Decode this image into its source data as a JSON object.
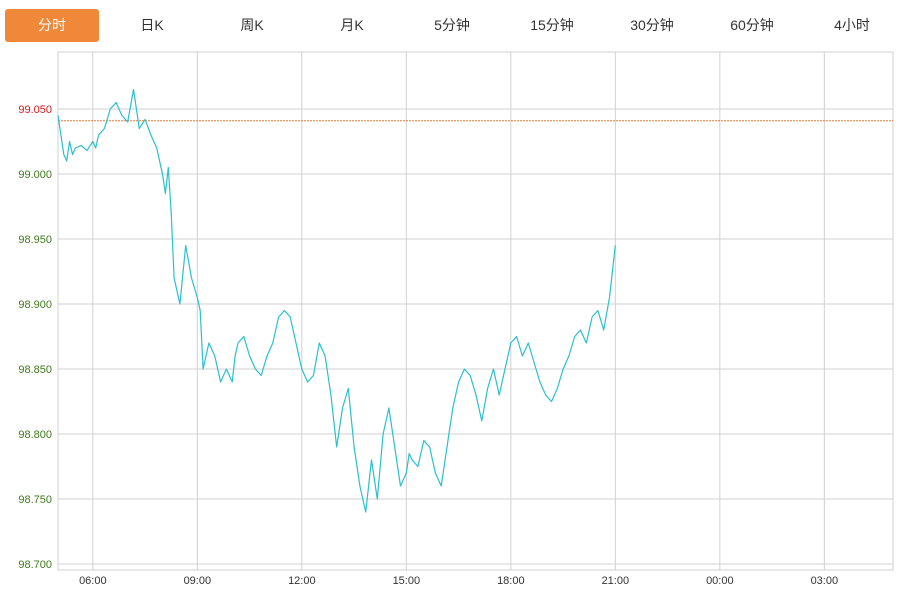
{
  "tabs": [
    {
      "label": "分时",
      "active": true
    },
    {
      "label": "日K",
      "active": false
    },
    {
      "label": "周K",
      "active": false
    },
    {
      "label": "月K",
      "active": false
    },
    {
      "label": "5分钟",
      "active": false
    },
    {
      "label": "15分钟",
      "active": false
    },
    {
      "label": "30分钟",
      "active": false
    },
    {
      "label": "60分钟",
      "active": false
    },
    {
      "label": "4小时",
      "active": false
    }
  ],
  "colors": {
    "accent": "#f0883a",
    "line": "#2bbfcf",
    "reference": "#e07b39",
    "grid": "#d0d0d0",
    "ytick": "#3d7a1a",
    "ytick_ref": "#d11a1a"
  },
  "chart_data": {
    "type": "line",
    "title": "",
    "xlabel": "",
    "ylabel": "",
    "x_ticks": [
      "06:00",
      "09:00",
      "12:00",
      "15:00",
      "18:00",
      "21:00",
      "00:00",
      "03:00"
    ],
    "y_ticks": [
      "98.700",
      "98.750",
      "98.800",
      "98.850",
      "98.900",
      "98.950",
      "99.000",
      "99.050"
    ],
    "y_highlight_tick": "99.050",
    "ylim": [
      98.7,
      99.05
    ],
    "xlim": [
      "05:00",
      "04:00"
    ],
    "reference_line": 99.041,
    "grid": true,
    "series": [
      {
        "x": [
          "05:00",
          "05:10",
          "05:15",
          "05:20",
          "05:25",
          "05:30",
          "05:40",
          "05:50",
          "06:00",
          "06:05",
          "06:10",
          "06:20",
          "06:30",
          "06:40",
          "06:50",
          "07:00",
          "07:10",
          "07:20",
          "07:30",
          "07:40",
          "07:50",
          "08:00",
          "08:05",
          "08:10",
          "08:15",
          "08:20",
          "08:30",
          "08:40",
          "08:50",
          "09:00",
          "09:05",
          "09:10",
          "09:20",
          "09:30",
          "09:40",
          "09:50",
          "10:00",
          "10:05",
          "10:10",
          "10:20",
          "10:30",
          "10:40",
          "10:50",
          "11:00",
          "11:10",
          "11:20",
          "11:30",
          "11:40",
          "11:50",
          "12:00",
          "12:10",
          "12:20",
          "12:30",
          "12:40",
          "12:50",
          "13:00",
          "13:10",
          "13:20",
          "13:30",
          "13:40",
          "13:50",
          "14:00",
          "14:10",
          "14:20",
          "14:30",
          "14:40",
          "14:50",
          "15:00",
          "15:05",
          "15:10",
          "15:20",
          "15:30",
          "15:40",
          "15:50",
          "16:00",
          "16:10",
          "16:20",
          "16:30",
          "16:40",
          "16:50",
          "17:00",
          "17:10",
          "17:20",
          "17:30",
          "17:40",
          "17:50",
          "18:00",
          "18:10",
          "18:20",
          "18:30",
          "18:40",
          "18:50",
          "19:00",
          "19:10",
          "19:20",
          "19:30",
          "19:40",
          "19:50",
          "20:00",
          "20:10",
          "20:20",
          "20:30",
          "20:40",
          "20:50",
          "21:00"
        ],
        "y": [
          99.045,
          99.015,
          99.01,
          99.025,
          99.015,
          99.02,
          99.022,
          99.018,
          99.025,
          99.02,
          99.03,
          99.035,
          99.05,
          99.055,
          99.045,
          99.04,
          99.065,
          99.035,
          99.042,
          99.03,
          99.02,
          99.0,
          98.985,
          99.005,
          98.97,
          98.92,
          98.9,
          98.945,
          98.92,
          98.905,
          98.895,
          98.85,
          98.87,
          98.86,
          98.84,
          98.85,
          98.84,
          98.86,
          98.87,
          98.875,
          98.86,
          98.85,
          98.845,
          98.86,
          98.87,
          98.89,
          98.895,
          98.89,
          98.87,
          98.85,
          98.84,
          98.845,
          98.87,
          98.86,
          98.83,
          98.79,
          98.82,
          98.835,
          98.79,
          98.76,
          98.74,
          98.78,
          98.75,
          98.8,
          98.82,
          98.79,
          98.76,
          98.77,
          98.785,
          98.78,
          98.775,
          98.795,
          98.79,
          98.77,
          98.76,
          98.79,
          98.82,
          98.84,
          98.85,
          98.845,
          98.83,
          98.81,
          98.835,
          98.85,
          98.83,
          98.85,
          98.87,
          98.875,
          98.86,
          98.87,
          98.855,
          98.84,
          98.83,
          98.825,
          98.835,
          98.85,
          98.86,
          98.875,
          98.88,
          98.87,
          98.89,
          98.895,
          98.88,
          98.905,
          98.945
        ]
      }
    ]
  }
}
